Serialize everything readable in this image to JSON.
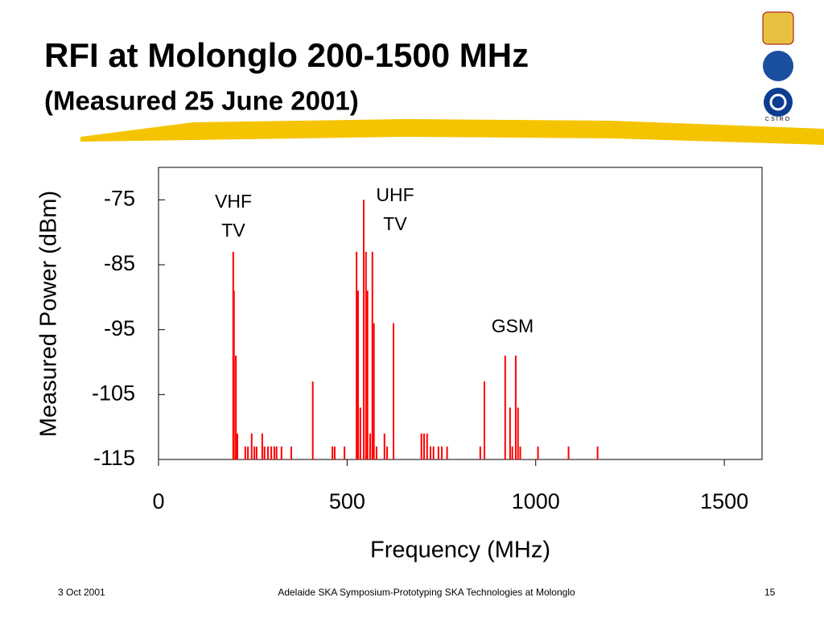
{
  "header": {
    "title": "RFI at Molonglo 200-1500 MHz",
    "subtitle": "(Measured 25 June 2001)",
    "logo_text": "CSIRO"
  },
  "chart_data": {
    "type": "stem",
    "color": "#ff0000",
    "x_label": "Frequency (MHz)",
    "y_label": "Measured Power (dBm)",
    "annotations": [
      [
        "VHF",
        "TV"
      ],
      [
        "UHF",
        "TV"
      ],
      [
        "GSM"
      ]
    ],
    "x": [
      198,
      200,
      205,
      209,
      230,
      237,
      247,
      254,
      260,
      275,
      281,
      290,
      299,
      307,
      313,
      326,
      352,
      409,
      461,
      467,
      493,
      525,
      529,
      535,
      544,
      550,
      554,
      561,
      567,
      571,
      578,
      599,
      606,
      623,
      697,
      704,
      712,
      721,
      729,
      742,
      751,
      765,
      853,
      864,
      919,
      932,
      938,
      947,
      953,
      959,
      1006,
      1087,
      1164
    ],
    "values": [
      -83,
      -89,
      -99,
      -111,
      -113,
      -113,
      -111,
      -113,
      -113,
      -111,
      -113,
      -113,
      -113,
      -113,
      -113,
      -113,
      -113,
      -103,
      -113,
      -113,
      -113,
      -83,
      -89,
      -107,
      -75,
      -83,
      -89,
      -111,
      -83,
      -94,
      -113,
      -111,
      -113,
      -94,
      -111,
      -111,
      -111,
      -113,
      -113,
      -113,
      -113,
      -113,
      -113,
      -103,
      -99,
      -107,
      -113,
      -99,
      -107,
      -113,
      -113,
      -113,
      -113
    ],
    "xlim": [
      0,
      1600
    ],
    "xticks": [
      0,
      500,
      1000,
      1500
    ],
    "ylim": [
      -115,
      -70
    ],
    "yticks": [
      -75,
      -85,
      -95,
      -105,
      -115
    ]
  },
  "footer": {
    "date": "3 Oct 2001",
    "center": "Adelaide SKA Symposium-Prototyping SKA Technologies at Molonglo",
    "page": "15"
  }
}
